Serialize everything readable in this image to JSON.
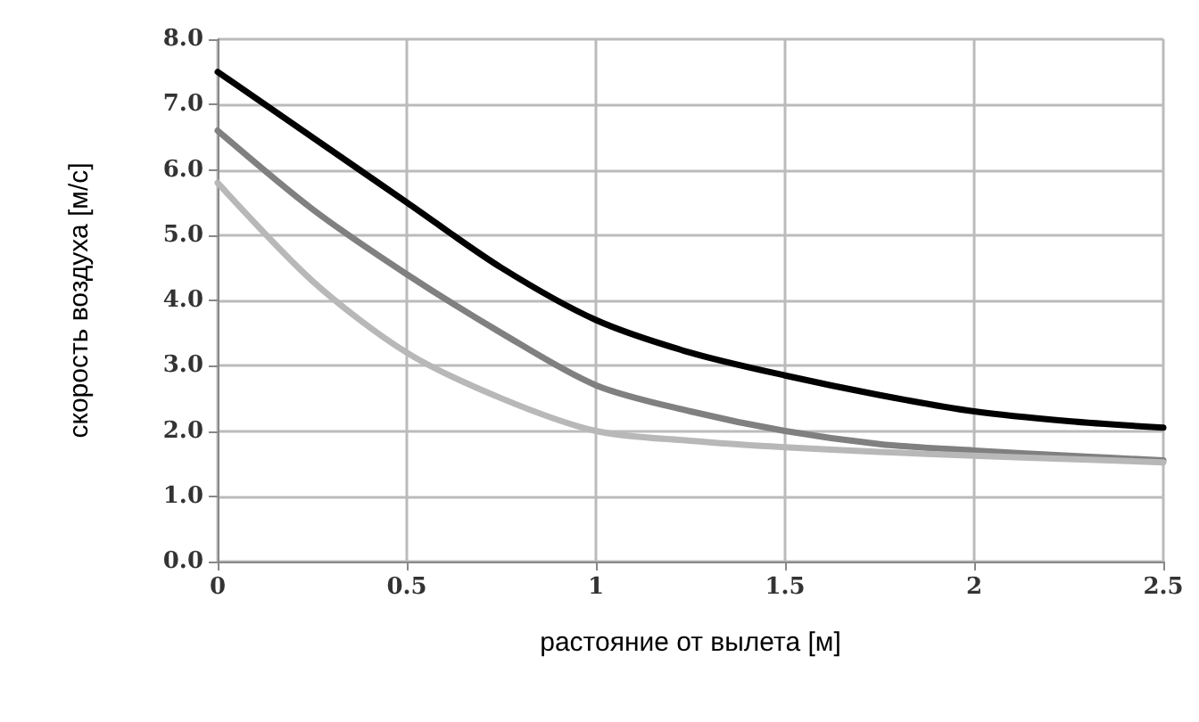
{
  "chart_data": {
    "type": "line",
    "xlabel": "растояние от вылета [м]",
    "ylabel": "скорость воздуха [м/с]",
    "x": [
      0,
      0.25,
      0.5,
      0.75,
      1,
      1.25,
      1.5,
      1.75,
      2,
      2.25,
      2.5
    ],
    "series": [
      {
        "color": "#000000",
        "values": [
          7.5,
          6.5,
          5.5,
          4.5,
          3.7,
          3.2,
          2.85,
          2.55,
          2.3,
          2.15,
          2.05
        ]
      },
      {
        "color": "#808080",
        "values": [
          6.6,
          5.4,
          4.4,
          3.5,
          2.7,
          2.3,
          2.0,
          1.8,
          1.7,
          1.62,
          1.55
        ]
      },
      {
        "color": "#b8b8b8",
        "values": [
          5.8,
          4.3,
          3.2,
          2.5,
          2.0,
          1.85,
          1.75,
          1.68,
          1.62,
          1.57,
          1.52
        ]
      }
    ],
    "xlim": [
      0,
      2.5
    ],
    "xticks": [
      0,
      0.5,
      1,
      1.5,
      2,
      2.5
    ],
    "ylim": [
      0,
      8
    ],
    "yticks": [
      {
        "value": 0,
        "label": "0.0"
      },
      {
        "value": 1,
        "label": "1.0"
      },
      {
        "value": 2,
        "label": "2.0"
      },
      {
        "value": 3,
        "label": "3.0"
      },
      {
        "value": 4,
        "label": "4.0"
      },
      {
        "value": 5,
        "label": "5.0"
      },
      {
        "value": 6,
        "label": "6.0"
      },
      {
        "value": 7,
        "label": "7.0"
      },
      {
        "value": 8,
        "label": "8.0"
      }
    ],
    "grid": true,
    "marker": "none",
    "line_style": "solid"
  }
}
